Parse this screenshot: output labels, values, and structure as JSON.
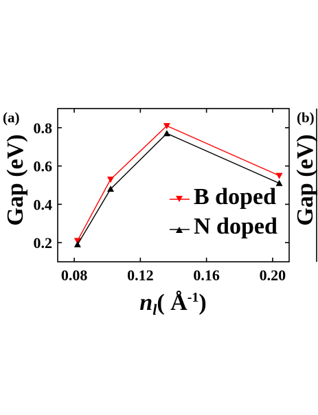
{
  "chart_data": {
    "type": "line",
    "panels": [
      "(a)",
      "(b)"
    ],
    "xlabel": {
      "main": "n",
      "sub": "l",
      "unit_open": "( ",
      "unit": "Å",
      "unit_sup": "-1",
      "unit_close": ")"
    },
    "ylabel": "Gap (eV)",
    "xlim": [
      0.07,
      0.21
    ],
    "ylim": [
      0.1,
      0.9
    ],
    "xticks": [
      0.08,
      0.12,
      0.16,
      0.2
    ],
    "xtick_labels": [
      "0.08",
      "0.12",
      "0.16",
      "0.20"
    ],
    "yticks": [
      0.2,
      0.4,
      0.6,
      0.8
    ],
    "ytick_labels": [
      "0.2",
      "0.4",
      "0.6",
      "0.8"
    ],
    "grid": false,
    "legend_position": "bottom-right",
    "series": [
      {
        "name": "B doped",
        "color": "#ff0000",
        "marker": "triangle-down",
        "x": [
          0.082,
          0.102,
          0.136,
          0.204
        ],
        "y": [
          0.21,
          0.53,
          0.81,
          0.55
        ]
      },
      {
        "name": "N doped",
        "color": "#000000",
        "marker": "triangle-up",
        "x": [
          0.082,
          0.102,
          0.136,
          0.204
        ],
        "y": [
          0.19,
          0.48,
          0.77,
          0.51
        ]
      }
    ]
  }
}
